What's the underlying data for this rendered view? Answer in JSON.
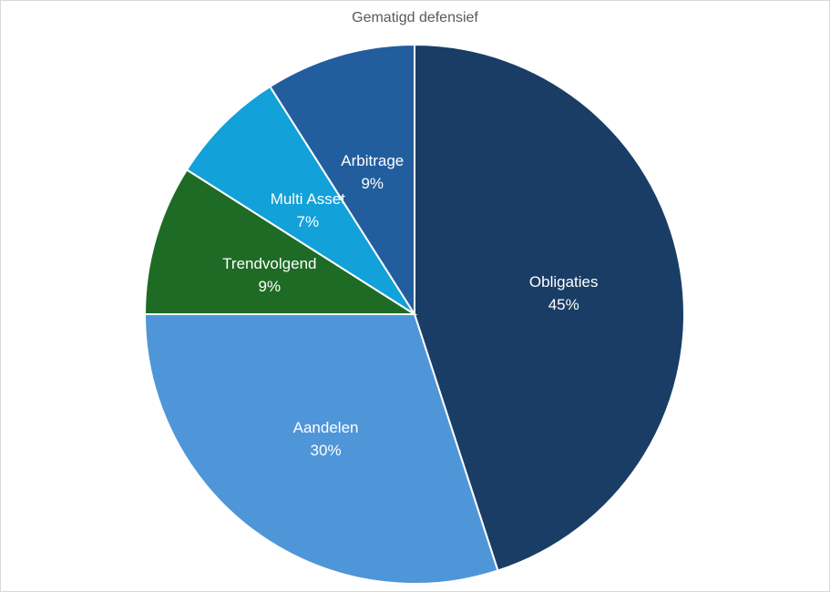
{
  "chart_data": {
    "type": "pie",
    "title": "Gematigd defensief",
    "start_angle_deg": 0,
    "direction": "clockwise",
    "slices": [
      {
        "name": "Obligaties",
        "value": 45,
        "label": "45%",
        "color": "#1a3d65"
      },
      {
        "name": "Aandelen",
        "value": 30,
        "label": "30%",
        "color": "#4f96d9"
      },
      {
        "name": "Trendvolgend",
        "value": 9,
        "label": "9%",
        "color": "#1e6b25"
      },
      {
        "name": "Multi Asset",
        "value": 7,
        "label": "7%",
        "color": "#12a1d8"
      },
      {
        "name": "Arbitrage",
        "value": 9,
        "label": "9%",
        "color": "#225e9e"
      }
    ]
  }
}
